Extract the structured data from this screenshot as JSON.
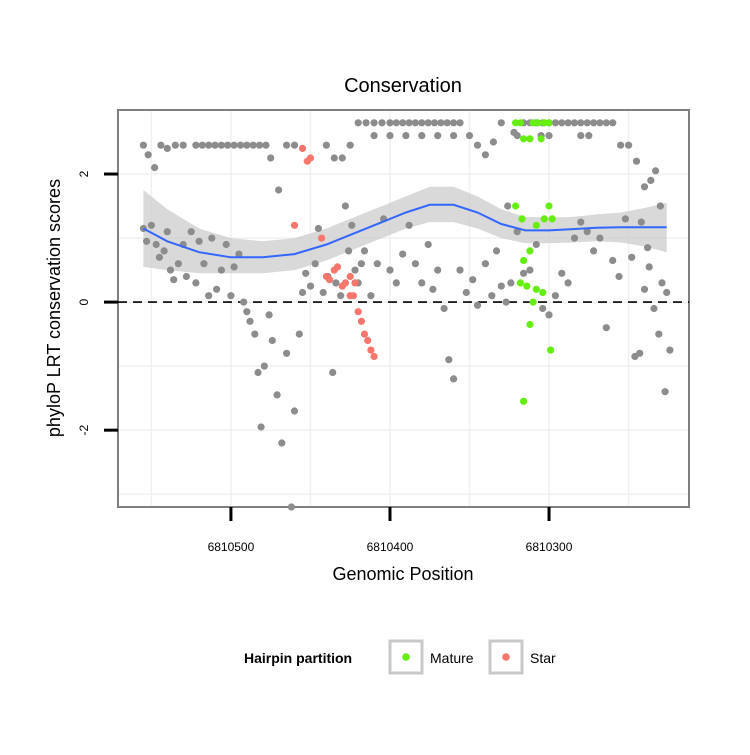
{
  "chart_data": {
    "type": "scatter",
    "title": "Conservation",
    "xlabel": "Genomic Position",
    "ylabel": "phyloP LRT conservation scores",
    "x_reversed": true,
    "xlim": [
      6810571,
      6810212
    ],
    "ylim": [
      -3.2,
      3.0
    ],
    "x_ticks": [
      {
        "value": 6810500,
        "label": "6810500"
      },
      {
        "value": 6810400,
        "label": "6810400"
      },
      {
        "value": 6810300,
        "label": "6810300"
      }
    ],
    "y_ticks": [
      {
        "value": -2,
        "label": "-2"
      },
      {
        "value": 0,
        "label": "0"
      },
      {
        "value": 2,
        "label": "2"
      }
    ],
    "reference_line": {
      "y": 0,
      "style": "dashed"
    },
    "grid": true,
    "legend": {
      "title": "Hairpin partition",
      "position": "bottom",
      "entries": [
        {
          "label": "Mature",
          "color": "#66ee11"
        },
        {
          "label": "Star",
          "color": "#f8766d"
        }
      ]
    },
    "colors": {
      "other": "#8c8c8c",
      "mature": "#66ee11",
      "star": "#f8766d",
      "smooth": "#3366ff",
      "band": "#cccccc"
    },
    "series": [
      {
        "name": "",
        "points": [
          [
            6810555,
            1.15
          ],
          [
            6810553,
            0.95
          ],
          [
            6810550,
            1.2
          ],
          [
            6810547,
            0.9
          ],
          [
            6810545,
            0.7
          ],
          [
            6810542,
            0.8
          ],
          [
            6810540,
            1.1
          ],
          [
            6810538,
            0.5
          ],
          [
            6810536,
            0.35
          ],
          [
            6810533,
            0.6
          ],
          [
            6810530,
            0.9
          ],
          [
            6810528,
            0.4
          ],
          [
            6810525,
            1.1
          ],
          [
            6810522,
            0.3
          ],
          [
            6810520,
            0.95
          ],
          [
            6810517,
            0.6
          ],
          [
            6810514,
            0.1
          ],
          [
            6810512,
            1.0
          ],
          [
            6810509,
            0.2
          ],
          [
            6810506,
            0.5
          ],
          [
            6810503,
            0.9
          ],
          [
            6810500,
            0.1
          ],
          [
            6810498,
            0.55
          ],
          [
            6810495,
            0.75
          ],
          [
            6810492,
            0.0
          ],
          [
            6810490,
            -0.15
          ],
          [
            6810488,
            -0.3
          ],
          [
            6810485,
            -0.5
          ],
          [
            6810483,
            -1.1
          ],
          [
            6810481,
            -1.95
          ],
          [
            6810479,
            -1.0
          ],
          [
            6810476,
            -0.2
          ],
          [
            6810474,
            -0.6
          ],
          [
            6810471,
            -1.45
          ],
          [
            6810468,
            -2.2
          ],
          [
            6810465,
            -0.8
          ],
          [
            6810462,
            -3.2
          ],
          [
            6810460,
            -1.7
          ],
          [
            6810457,
            -0.5
          ],
          [
            6810455,
            0.15
          ],
          [
            6810453,
            0.45
          ],
          [
            6810450,
            0.25
          ],
          [
            6810447,
            0.6
          ],
          [
            6810445,
            1.15
          ],
          [
            6810442,
            0.15
          ],
          [
            6810439,
            0.4
          ],
          [
            6810436,
            -1.1
          ],
          [
            6810434,
            0.3
          ],
          [
            6810431,
            0.1
          ],
          [
            6810555,
            2.45
          ],
          [
            6810552,
            2.3
          ],
          [
            6810548,
            2.1
          ],
          [
            6810544,
            2.45
          ],
          [
            6810540,
            2.4
          ],
          [
            6810535,
            2.45
          ],
          [
            6810530,
            2.45
          ],
          [
            6810522,
            2.45
          ],
          [
            6810518,
            2.45
          ],
          [
            6810514,
            2.45
          ],
          [
            6810510,
            2.45
          ],
          [
            6810506,
            2.45
          ],
          [
            6810502,
            2.45
          ],
          [
            6810498,
            2.45
          ],
          [
            6810494,
            2.45
          ],
          [
            6810490,
            2.45
          ],
          [
            6810486,
            2.45
          ],
          [
            6810482,
            2.45
          ],
          [
            6810478,
            2.45
          ],
          [
            6810475,
            2.25
          ],
          [
            6810470,
            1.75
          ],
          [
            6810465,
            2.45
          ],
          [
            6810460,
            2.45
          ],
          [
            6810440,
            2.45
          ],
          [
            6810435,
            2.25
          ],
          [
            6810430,
            2.25
          ],
          [
            6810428,
            1.5
          ],
          [
            6810425,
            2.45
          ],
          [
            6810420,
            2.8
          ],
          [
            6810415,
            2.8
          ],
          [
            6810410,
            2.8
          ],
          [
            6810405,
            2.8
          ],
          [
            6810400,
            2.8
          ],
          [
            6810396,
            2.8
          ],
          [
            6810392,
            2.8
          ],
          [
            6810388,
            2.8
          ],
          [
            6810384,
            2.8
          ],
          [
            6810380,
            2.8
          ],
          [
            6810376,
            2.8
          ],
          [
            6810372,
            2.8
          ],
          [
            6810368,
            2.8
          ],
          [
            6810364,
            2.8
          ],
          [
            6810360,
            2.8
          ],
          [
            6810356,
            2.8
          ],
          [
            6810410,
            2.6
          ],
          [
            6810400,
            2.6
          ],
          [
            6810390,
            2.6
          ],
          [
            6810380,
            2.6
          ],
          [
            6810370,
            2.6
          ],
          [
            6810360,
            2.6
          ],
          [
            6810350,
            2.6
          ],
          [
            6810345,
            2.45
          ],
          [
            6810340,
            2.3
          ],
          [
            6810335,
            2.5
          ],
          [
            6810330,
            2.8
          ],
          [
            6810326,
            1.5
          ],
          [
            6810322,
            2.65
          ],
          [
            6810316,
            2.8
          ],
          [
            6810312,
            2.8
          ],
          [
            6810308,
            2.8
          ],
          [
            6810304,
            2.8
          ],
          [
            6810300,
            2.8
          ],
          [
            6810296,
            2.8
          ],
          [
            6810292,
            2.8
          ],
          [
            6810288,
            2.8
          ],
          [
            6810284,
            2.8
          ],
          [
            6810280,
            2.8
          ],
          [
            6810276,
            2.8
          ],
          [
            6810272,
            2.8
          ],
          [
            6810268,
            2.8
          ],
          [
            6810264,
            2.8
          ],
          [
            6810260,
            2.8
          ],
          [
            6810320,
            2.6
          ],
          [
            6810305,
            2.6
          ],
          [
            6810300,
            2.6
          ],
          [
            6810280,
            2.6
          ],
          [
            6810275,
            2.6
          ],
          [
            6810255,
            2.45
          ],
          [
            6810250,
            2.45
          ],
          [
            6810245,
            2.2
          ],
          [
            6810240,
            1.8
          ],
          [
            6810236,
            1.9
          ],
          [
            6810233,
            2.05
          ],
          [
            6810230,
            1.5
          ],
          [
            6810426,
            0.8
          ],
          [
            6810424,
            1.2
          ],
          [
            6810422,
            0.5
          ],
          [
            6810420,
            0.3
          ],
          [
            6810418,
            0.6
          ],
          [
            6810416,
            0.8
          ],
          [
            6810412,
            0.1
          ],
          [
            6810408,
            0.6
          ],
          [
            6810404,
            1.3
          ],
          [
            6810400,
            0.5
          ],
          [
            6810396,
            0.3
          ],
          [
            6810392,
            0.75
          ],
          [
            6810388,
            1.2
          ],
          [
            6810384,
            0.6
          ],
          [
            6810380,
            0.3
          ],
          [
            6810376,
            0.9
          ],
          [
            6810373,
            0.2
          ],
          [
            6810370,
            0.5
          ],
          [
            6810366,
            -0.1
          ],
          [
            6810363,
            -0.9
          ],
          [
            6810360,
            -1.2
          ],
          [
            6810356,
            0.5
          ],
          [
            6810352,
            0.15
          ],
          [
            6810348,
            0.35
          ],
          [
            6810345,
            -0.05
          ],
          [
            6810340,
            0.6
          ],
          [
            6810336,
            0.1
          ],
          [
            6810333,
            0.8
          ],
          [
            6810330,
            0.25
          ],
          [
            6810327,
            0.0
          ],
          [
            6810324,
            0.3
          ],
          [
            6810320,
            1.1
          ],
          [
            6810316,
            0.45
          ],
          [
            6810312,
            0.5
          ],
          [
            6810308,
            0.9
          ],
          [
            6810304,
            -0.1
          ],
          [
            6810300,
            -0.2
          ],
          [
            6810296,
            0.1
          ],
          [
            6810292,
            0.45
          ],
          [
            6810288,
            0.3
          ],
          [
            6810284,
            1.0
          ],
          [
            6810280,
            1.25
          ],
          [
            6810276,
            1.1
          ],
          [
            6810272,
            0.8
          ],
          [
            6810268,
            1.0
          ],
          [
            6810264,
            -0.4
          ],
          [
            6810260,
            0.65
          ],
          [
            6810256,
            0.4
          ],
          [
            6810252,
            1.3
          ],
          [
            6810248,
            0.7
          ],
          [
            6810246,
            -0.85
          ],
          [
            6810243,
            -0.8
          ],
          [
            6810240,
            0.2
          ],
          [
            6810237,
            0.55
          ],
          [
            6810234,
            -0.1
          ],
          [
            6810231,
            -0.5
          ],
          [
            6810229,
            0.3
          ],
          [
            6810227,
            -1.4
          ],
          [
            6810226,
            0.15
          ],
          [
            6810224,
            -0.75
          ],
          [
            6810242,
            1.25
          ],
          [
            6810238,
            0.85
          ]
        ]
      },
      {
        "name": "Mature",
        "points": [
          [
            6810321,
            2.8
          ],
          [
            6810318,
            2.8
          ],
          [
            6810316,
            2.55
          ],
          [
            6810312,
            2.55
          ],
          [
            6810310,
            2.8
          ],
          [
            6810307,
            2.8
          ],
          [
            6810305,
            2.55
          ],
          [
            6810303,
            2.8
          ],
          [
            6810300,
            2.8
          ],
          [
            6810321,
            1.5
          ],
          [
            6810317,
            1.3
          ],
          [
            6810308,
            1.2
          ],
          [
            6810303,
            1.3
          ],
          [
            6810300,
            1.5
          ],
          [
            6810298,
            1.3
          ],
          [
            6810316,
            0.65
          ],
          [
            6810312,
            0.8
          ],
          [
            6810318,
            0.3
          ],
          [
            6810314,
            0.25
          ],
          [
            6810308,
            0.2
          ],
          [
            6810304,
            0.15
          ],
          [
            6810310,
            0.0
          ],
          [
            6810312,
            -0.35
          ],
          [
            6810299,
            -0.75
          ],
          [
            6810316,
            -1.55
          ]
        ]
      },
      {
        "name": "Star",
        "points": [
          [
            6810460,
            1.2
          ],
          [
            6810455,
            2.4
          ],
          [
            6810452,
            2.2
          ],
          [
            6810450,
            2.25
          ],
          [
            6810443,
            1.0
          ],
          [
            6810440,
            0.4
          ],
          [
            6810438,
            0.35
          ],
          [
            6810435,
            0.5
          ],
          [
            6810433,
            0.55
          ],
          [
            6810430,
            0.25
          ],
          [
            6810428,
            0.3
          ],
          [
            6810425,
            0.1
          ],
          [
            6810423,
            0.1
          ],
          [
            6810420,
            -0.15
          ],
          [
            6810418,
            -0.3
          ],
          [
            6810416,
            -0.5
          ],
          [
            6810414,
            -0.6
          ],
          [
            6810412,
            -0.75
          ],
          [
            6810410,
            -0.85
          ],
          [
            6810425,
            0.4
          ],
          [
            6810422,
            0.3
          ]
        ]
      }
    ],
    "smooth": [
      [
        6810555,
        1.15
      ],
      [
        6810540,
        0.95
      ],
      [
        6810520,
        0.78
      ],
      [
        6810500,
        0.7
      ],
      [
        6810480,
        0.7
      ],
      [
        6810460,
        0.75
      ],
      [
        6810440,
        0.9
      ],
      [
        6810425,
        1.05
      ],
      [
        6810410,
        1.2
      ],
      [
        6810390,
        1.4
      ],
      [
        6810375,
        1.52
      ],
      [
        6810360,
        1.52
      ],
      [
        6810345,
        1.4
      ],
      [
        6810330,
        1.22
      ],
      [
        6810315,
        1.12
      ],
      [
        6810300,
        1.12
      ],
      [
        6810285,
        1.14
      ],
      [
        6810270,
        1.16
      ],
      [
        6810255,
        1.17
      ],
      [
        6810240,
        1.17
      ],
      [
        6810226,
        1.17
      ]
    ],
    "smooth_band": [
      [
        6810555,
        1.75,
        0.55
      ],
      [
        6810540,
        1.45,
        0.5
      ],
      [
        6810520,
        1.15,
        0.45
      ],
      [
        6810500,
        1.0,
        0.45
      ],
      [
        6810480,
        0.95,
        0.45
      ],
      [
        6810460,
        1.0,
        0.5
      ],
      [
        6810440,
        1.15,
        0.65
      ],
      [
        6810425,
        1.3,
        0.8
      ],
      [
        6810410,
        1.45,
        0.95
      ],
      [
        6810390,
        1.65,
        1.15
      ],
      [
        6810375,
        1.8,
        1.25
      ],
      [
        6810360,
        1.8,
        1.25
      ],
      [
        6810345,
        1.65,
        1.15
      ],
      [
        6810330,
        1.45,
        1.0
      ],
      [
        6810315,
        1.33,
        0.92
      ],
      [
        6810300,
        1.32,
        0.92
      ],
      [
        6810285,
        1.33,
        0.93
      ],
      [
        6810270,
        1.37,
        0.95
      ],
      [
        6810255,
        1.4,
        0.93
      ],
      [
        6810240,
        1.47,
        0.87
      ],
      [
        6810226,
        1.55,
        0.78
      ]
    ]
  }
}
